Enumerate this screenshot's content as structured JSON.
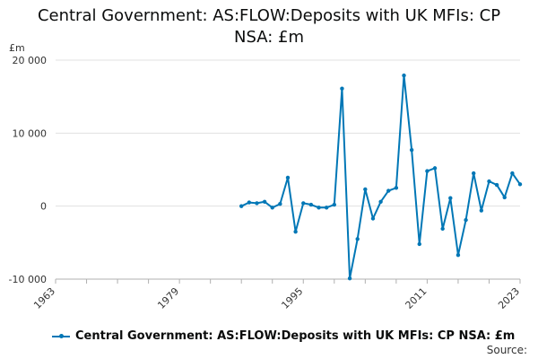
{
  "chart_data": {
    "type": "line",
    "title": "Central Government: AS:FLOW:Deposits with UK MFIs: CP NSA: £m",
    "unit": "£m",
    "ylabel": "",
    "xlabel": "",
    "ylim": [
      -10000,
      20000
    ],
    "xlim": [
      1963,
      2023
    ],
    "yticks": [
      -10000,
      0,
      10000,
      20000
    ],
    "ytick_labels": [
      "-10 000",
      "0",
      "10 000",
      "20 000"
    ],
    "xticks": [
      1963,
      1979,
      1995,
      2011,
      2023
    ],
    "xtick_labels": [
      "1963",
      "1979",
      "1995",
      "2011",
      "2023"
    ],
    "grid": true,
    "legend_position": "bottom",
    "color": "#0077b6",
    "series": [
      {
        "name": "Central Government: AS:FLOW:Deposits with UK MFIs: CP NSA: £m",
        "x": [
          1987,
          1988,
          1989,
          1990,
          1991,
          1992,
          1993,
          1994,
          1995,
          1996,
          1997,
          1998,
          1999,
          2000,
          2001,
          2002,
          2003,
          2004,
          2005,
          2006,
          2007,
          2008,
          2009,
          2010,
          2011,
          2012,
          2013,
          2014,
          2015,
          2016,
          2017,
          2018,
          2019,
          2020,
          2021,
          2022,
          2023
        ],
        "values": [
          0,
          500,
          400,
          600,
          -200,
          300,
          3900,
          -3500,
          400,
          200,
          -200,
          -200,
          200,
          16100,
          -9900,
          -4500,
          2300,
          -1700,
          600,
          2100,
          2500,
          17900,
          7700,
          -5200,
          4800,
          5200,
          -3100,
          1100,
          -6700,
          -1900,
          4500,
          -600,
          3400,
          2900,
          1200,
          4500,
          3000
        ]
      }
    ]
  },
  "legend": {
    "label": "Central Government: AS:FLOW:Deposits with UK MFIs: CP NSA: £m"
  },
  "source": {
    "label": "Source:"
  }
}
